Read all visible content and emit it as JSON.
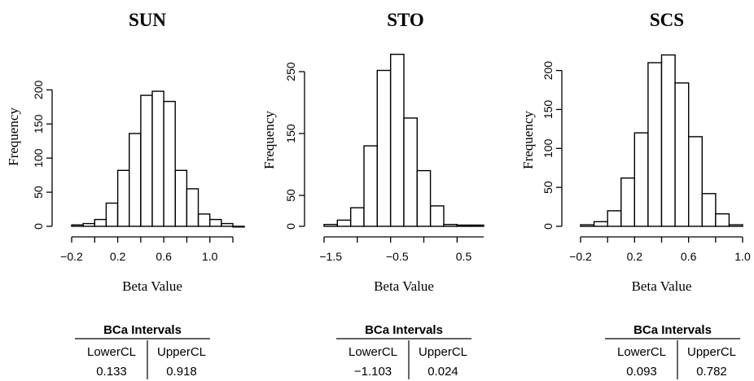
{
  "chart_data": [
    {
      "type": "bar",
      "title": "SUN",
      "xlabel": "Beta Value",
      "ylabel": "Frequency",
      "bin_width": 0.1,
      "x": [
        -0.2,
        -0.1,
        0.0,
        0.1,
        0.2,
        0.3,
        0.4,
        0.5,
        0.6,
        0.7,
        0.8,
        0.9,
        1.0,
        1.1,
        1.2
      ],
      "values": [
        2,
        4,
        10,
        34,
        82,
        136,
        192,
        198,
        183,
        82,
        55,
        18,
        10,
        4,
        0
      ],
      "xlim": [
        -0.2,
        1.2
      ],
      "ylim": [
        0,
        200
      ],
      "xticks": [
        "-0.2",
        "0.2",
        "0.6",
        "1.0"
      ],
      "yticks": [
        "0",
        "50",
        "100",
        "150",
        "200"
      ],
      "ci": {
        "title": "BCa Intervals",
        "lower_label": "LowerCL",
        "upper_label": "UpperCL",
        "lower": "0.133",
        "upper": "0.918"
      }
    },
    {
      "type": "bar",
      "title": "STO",
      "xlabel": "Beta Value",
      "ylabel": "Frequency",
      "bin_width": 0.2,
      "x": [
        -1.6,
        -1.4,
        -1.2,
        -1.0,
        -0.8,
        -0.6,
        -0.4,
        -0.2,
        0.0,
        0.2,
        0.4,
        0.6
      ],
      "values": [
        3,
        10,
        30,
        130,
        252,
        278,
        175,
        90,
        33,
        3,
        2,
        2
      ],
      "xlim": [
        -1.6,
        0.8
      ],
      "ylim": [
        0,
        250
      ],
      "xticks": [
        "-1.5",
        "-0.5",
        "0.5"
      ],
      "yticks": [
        "0",
        "50",
        "150",
        "250"
      ],
      "ci": {
        "title": "BCa Intervals",
        "lower_label": "LowerCL",
        "upper_label": "UpperCL",
        "lower": "−1.103",
        "upper": "0.024"
      }
    },
    {
      "type": "bar",
      "title": "SCS",
      "xlabel": "Beta Value",
      "ylabel": "Frequency",
      "bin_width": 0.1,
      "x": [
        -0.2,
        -0.1,
        0.0,
        0.1,
        0.2,
        0.3,
        0.4,
        0.5,
        0.6,
        0.7,
        0.8,
        0.9
      ],
      "values": [
        2,
        6,
        20,
        62,
        120,
        210,
        220,
        184,
        115,
        42,
        16,
        2
      ],
      "xlim": [
        -0.2,
        1.0
      ],
      "ylim": [
        0,
        200
      ],
      "xticks": [
        "-0.2",
        "0.2",
        "0.6",
        "1.0"
      ],
      "yticks": [
        "0",
        "50",
        "100",
        "150",
        "200"
      ],
      "ci": {
        "title": "BCa Intervals",
        "lower_label": "LowerCL",
        "upper_label": "UpperCL",
        "lower": "0.093",
        "upper": "0.782"
      }
    }
  ]
}
